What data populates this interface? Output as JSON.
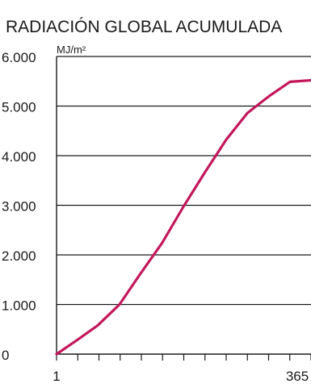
{
  "chart_data": {
    "type": "line",
    "title": "RADIACIÓN GLOBAL ACUMULADA",
    "ylabel": "MJ/m²",
    "xlabel": "",
    "x": [
      1,
      30,
      60,
      91,
      121,
      152,
      182,
      213,
      244,
      274,
      305,
      335,
      365
    ],
    "series": [
      {
        "values": [
          0,
          280,
          580,
          1000,
          1620,
          2240,
          2960,
          3660,
          4330,
          4860,
          5200,
          5490,
          5520
        ],
        "color": "#c2185b"
      }
    ],
    "ylim": [
      0,
      6000
    ],
    "xlim": [
      1,
      365
    ],
    "yticks": [
      0,
      1000,
      2000,
      3000,
      4000,
      5000,
      6000
    ],
    "ytick_labels": [
      "0",
      "1.000",
      "2.000",
      "3.000",
      "4.000",
      "5.000",
      "6.000"
    ],
    "xtick_labels": [
      "1",
      "365"
    ],
    "x_minor_ticks": 12,
    "grid": "horizontal",
    "line_color": "#c2185b",
    "axis_color": "#1a1a1a"
  }
}
